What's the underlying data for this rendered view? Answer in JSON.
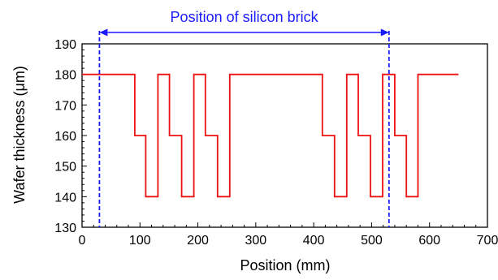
{
  "chart_data": {
    "type": "line",
    "xlabel": "Position (mm)",
    "ylabel": "Wafer thickness (μm)",
    "xlim": [
      0,
      700
    ],
    "ylim": [
      130,
      190
    ],
    "x_ticks": [
      0,
      100,
      200,
      300,
      400,
      500,
      600,
      700
    ],
    "y_ticks": [
      130,
      140,
      150,
      160,
      170,
      180,
      190
    ],
    "grid": false,
    "series": [
      {
        "color": "#ee1111",
        "style": "step",
        "x": [
          0,
          91,
          91,
          110,
          110,
          131,
          131,
          151,
          151,
          172,
          172,
          193,
          193,
          213,
          213,
          234,
          234,
          255,
          255,
          415,
          415,
          436,
          436,
          457,
          457,
          477,
          477,
          498,
          498,
          519,
          519,
          540,
          540,
          560,
          560,
          580,
          580,
          650
        ],
        "y": [
          180,
          180,
          160,
          160,
          140,
          140,
          180,
          180,
          160,
          160,
          140,
          140,
          180,
          180,
          160,
          160,
          140,
          140,
          180,
          180,
          160,
          160,
          140,
          140,
          180,
          180,
          160,
          160,
          140,
          140,
          180,
          180,
          160,
          160,
          140,
          140,
          180,
          180
        ]
      }
    ],
    "annotation": {
      "text": "Position of silicon brick",
      "color": "#1a1aff",
      "from_x": 30,
      "to_x": 530
    }
  }
}
